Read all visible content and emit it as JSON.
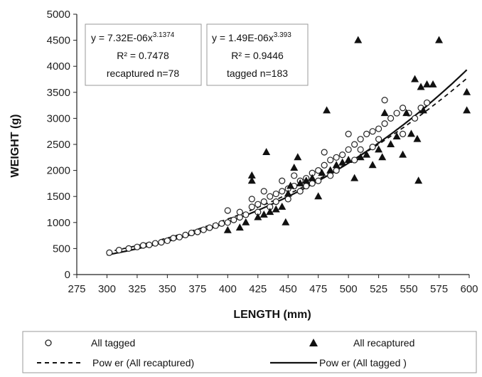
{
  "chart_data": {
    "type": "scatter",
    "title": "",
    "xlabel": "LENGTH (mm)",
    "ylabel": "WEIGHT (g)",
    "xlim": [
      275,
      600
    ],
    "ylim": [
      0,
      5000
    ],
    "x_ticks": [
      275,
      300,
      325,
      350,
      375,
      400,
      425,
      450,
      475,
      500,
      525,
      550,
      575,
      600
    ],
    "y_ticks": [
      0,
      500,
      1000,
      1500,
      2000,
      2500,
      3000,
      3500,
      4000,
      4500,
      5000
    ],
    "grid": false,
    "legend_position": "bottom",
    "series": [
      {
        "name": "All tagged",
        "marker": "open-circle",
        "points": [
          [
            302,
            420
          ],
          [
            310,
            470
          ],
          [
            318,
            500
          ],
          [
            325,
            530
          ],
          [
            330,
            560
          ],
          [
            335,
            570
          ],
          [
            340,
            600
          ],
          [
            345,
            620
          ],
          [
            350,
            650
          ],
          [
            355,
            700
          ],
          [
            360,
            720
          ],
          [
            365,
            760
          ],
          [
            370,
            800
          ],
          [
            375,
            820
          ],
          [
            380,
            860
          ],
          [
            385,
            900
          ],
          [
            390,
            940
          ],
          [
            395,
            980
          ],
          [
            400,
            1000
          ],
          [
            400,
            1230
          ],
          [
            405,
            1050
          ],
          [
            410,
            1100
          ],
          [
            410,
            1200
          ],
          [
            415,
            1150
          ],
          [
            420,
            1300
          ],
          [
            420,
            1450
          ],
          [
            425,
            1350
          ],
          [
            425,
            1200
          ],
          [
            430,
            1400
          ],
          [
            430,
            1600
          ],
          [
            435,
            1500
          ],
          [
            435,
            1300
          ],
          [
            440,
            1550
          ],
          [
            440,
            1400
          ],
          [
            445,
            1600
          ],
          [
            445,
            1800
          ],
          [
            450,
            1650
          ],
          [
            450,
            1450
          ],
          [
            455,
            1700
          ],
          [
            455,
            1900
          ],
          [
            460,
            1800
          ],
          [
            460,
            1600
          ],
          [
            465,
            1850
          ],
          [
            465,
            1700
          ],
          [
            470,
            1950
          ],
          [
            470,
            1750
          ],
          [
            475,
            2000
          ],
          [
            475,
            1800
          ],
          [
            480,
            2100
          ],
          [
            480,
            2350
          ],
          [
            485,
            2200
          ],
          [
            485,
            1900
          ],
          [
            490,
            2250
          ],
          [
            490,
            2000
          ],
          [
            495,
            2300
          ],
          [
            500,
            2400
          ],
          [
            500,
            2700
          ],
          [
            505,
            2500
          ],
          [
            505,
            2200
          ],
          [
            510,
            2600
          ],
          [
            510,
            2400
          ],
          [
            515,
            2700
          ],
          [
            520,
            2750
          ],
          [
            520,
            2450
          ],
          [
            525,
            2800
          ],
          [
            525,
            2600
          ],
          [
            530,
            2900
          ],
          [
            530,
            3350
          ],
          [
            535,
            3000
          ],
          [
            540,
            3100
          ],
          [
            545,
            3200
          ],
          [
            545,
            2700
          ],
          [
            550,
            3100
          ],
          [
            555,
            3000
          ],
          [
            560,
            3200
          ],
          [
            565,
            3300
          ]
        ]
      },
      {
        "name": "All recaptured",
        "marker": "filled-triangle",
        "points": [
          [
            400,
            850
          ],
          [
            410,
            900
          ],
          [
            415,
            1000
          ],
          [
            420,
            1900
          ],
          [
            420,
            1800
          ],
          [
            425,
            1100
          ],
          [
            430,
            1150
          ],
          [
            432,
            2350
          ],
          [
            435,
            1200
          ],
          [
            440,
            1250
          ],
          [
            445,
            1300
          ],
          [
            448,
            1000
          ],
          [
            450,
            1550
          ],
          [
            452,
            1700
          ],
          [
            455,
            2050
          ],
          [
            458,
            2250
          ],
          [
            460,
            1750
          ],
          [
            465,
            1800
          ],
          [
            470,
            1850
          ],
          [
            475,
            1500
          ],
          [
            478,
            1950
          ],
          [
            482,
            3150
          ],
          [
            485,
            2000
          ],
          [
            490,
            2100
          ],
          [
            495,
            2150
          ],
          [
            500,
            2200
          ],
          [
            505,
            1850
          ],
          [
            508,
            4500
          ],
          [
            510,
            2250
          ],
          [
            515,
            2300
          ],
          [
            520,
            2100
          ],
          [
            525,
            2400
          ],
          [
            528,
            2250
          ],
          [
            530,
            3100
          ],
          [
            535,
            2500
          ],
          [
            540,
            2650
          ],
          [
            545,
            2300
          ],
          [
            548,
            3100
          ],
          [
            552,
            2700
          ],
          [
            555,
            3750
          ],
          [
            557,
            2600
          ],
          [
            558,
            1800
          ],
          [
            560,
            3600
          ],
          [
            562,
            3150
          ],
          [
            565,
            3650
          ],
          [
            570,
            3650
          ],
          [
            575,
            4500
          ],
          [
            598,
            3500
          ],
          [
            598,
            3150
          ]
        ]
      },
      {
        "name": "Pow er (All recaptured)",
        "type": "power-fit",
        "a": 7.32e-06,
        "b": 3.1374,
        "line_style": "dashed"
      },
      {
        "name": "Pow er (All tagged )",
        "type": "power-fit",
        "a": 1.49e-06,
        "b": 3.393,
        "line_style": "solid"
      }
    ],
    "annotations": [
      {
        "equation_base": "y = 7.32E-06x",
        "exponent": "3.1374",
        "r2": "R² = 0.7478",
        "n": "recaptured n=78"
      },
      {
        "equation_base": "y = 1.49E-06x",
        "exponent": "3.393",
        "r2": "R² = 0.9446",
        "n": "tagged n=183"
      }
    ]
  }
}
